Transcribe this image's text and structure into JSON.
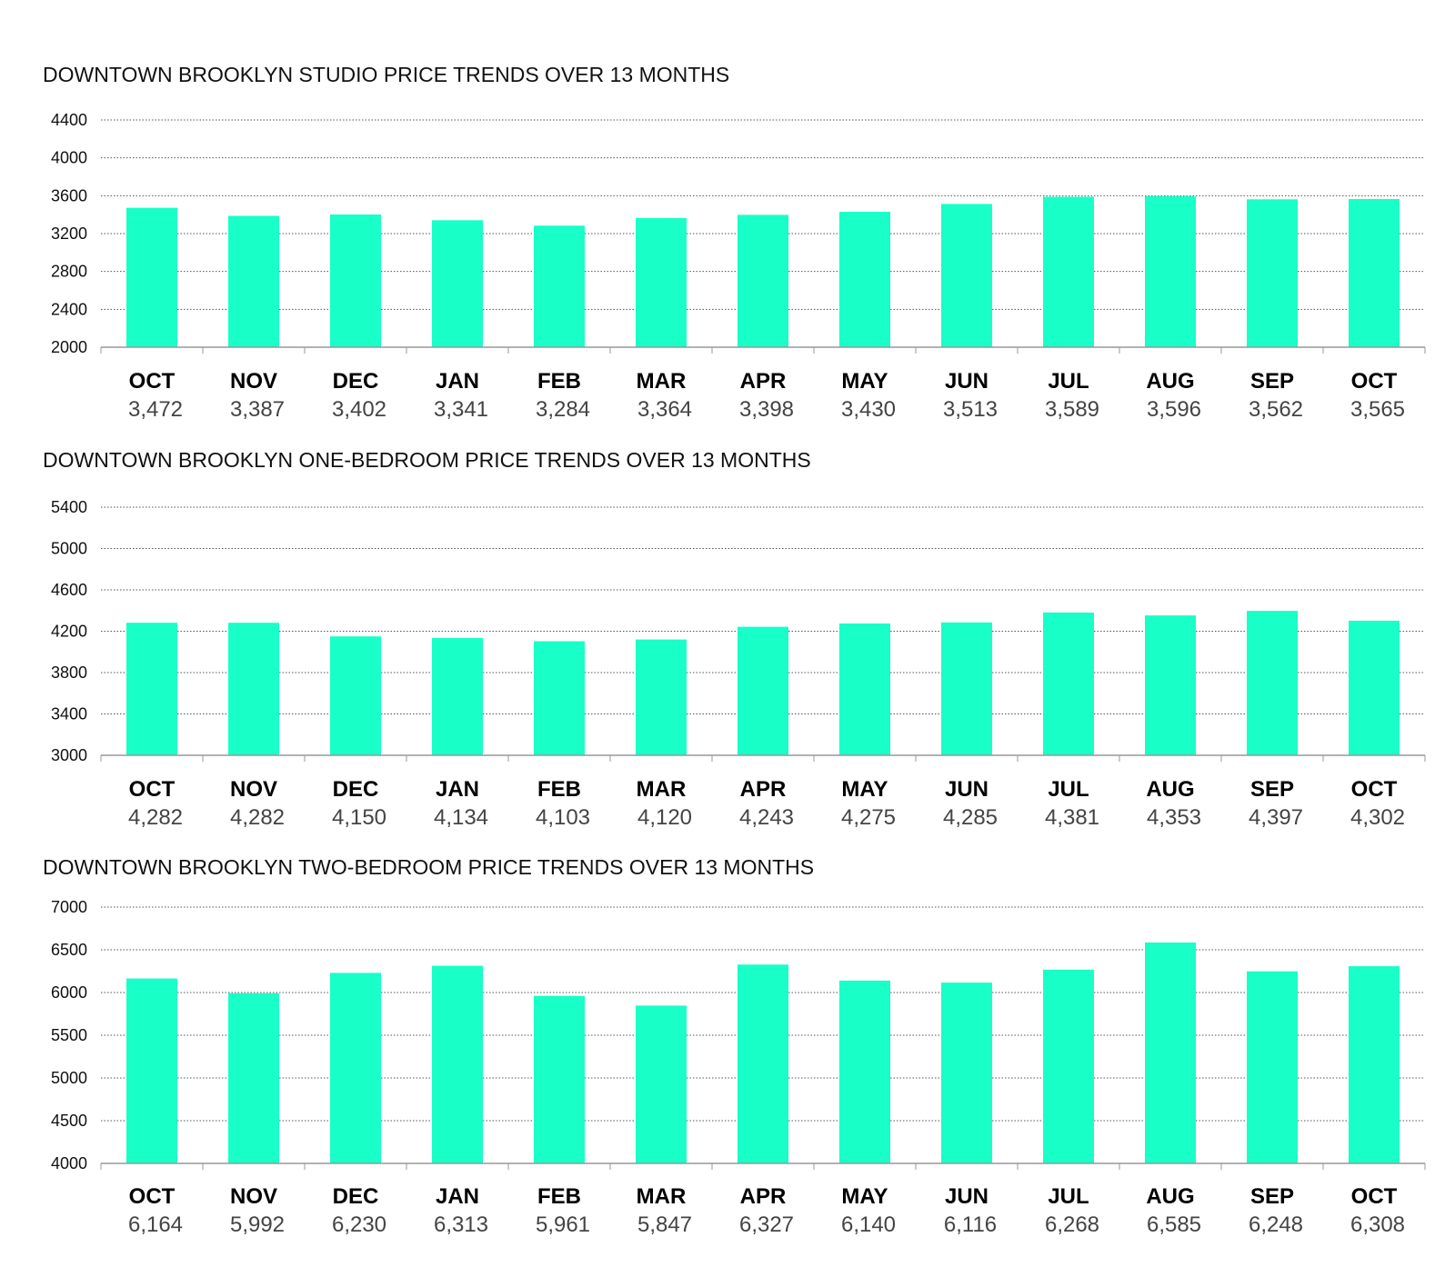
{
  "colors": {
    "bar": "#19FFC8",
    "grid": "#555555",
    "axis": "#999999"
  },
  "chart_data": [
    {
      "type": "bar",
      "title": "DOWNTOWN BROOKLYN STUDIO PRICE TRENDS OVER 13 MONTHS",
      "categories": [
        "OCT",
        "NOV",
        "DEC",
        "JAN",
        "FEB",
        "MAR",
        "APR",
        "MAY",
        "JUN",
        "JUL",
        "AUG",
        "SEP",
        "OCT"
      ],
      "values": [
        3472,
        3387,
        3402,
        3341,
        3284,
        3364,
        3398,
        3430,
        3513,
        3589,
        3596,
        3562,
        3565
      ],
      "value_labels": [
        "3,472",
        "3,387",
        "3,402",
        "3,341",
        "3,284",
        "3,364",
        "3,398",
        "3,430",
        "3,513",
        "3,589",
        "3,596",
        "3,562",
        "3,565"
      ],
      "ylim": [
        2000,
        4400
      ],
      "yticks": [
        2000,
        2400,
        2800,
        3200,
        3600,
        4000,
        4400
      ],
      "grid": true,
      "xlabel": "",
      "ylabel": ""
    },
    {
      "type": "bar",
      "title": "DOWNTOWN BROOKLYN ONE-BEDROOM PRICE TRENDS OVER 13 MONTHS",
      "categories": [
        "OCT",
        "NOV",
        "DEC",
        "JAN",
        "FEB",
        "MAR",
        "APR",
        "MAY",
        "JUN",
        "JUL",
        "AUG",
        "SEP",
        "OCT"
      ],
      "values": [
        4282,
        4282,
        4150,
        4134,
        4103,
        4120,
        4243,
        4275,
        4285,
        4381,
        4353,
        4397,
        4302
      ],
      "value_labels": [
        "4,282",
        "4,282",
        "4,150",
        "4,134",
        "4,103",
        "4,120",
        "4,243",
        "4,275",
        "4,285",
        "4,381",
        "4,353",
        "4,397",
        "4,302"
      ],
      "ylim": [
        3000,
        5400
      ],
      "yticks": [
        3000,
        3400,
        3800,
        4200,
        4600,
        5000,
        5400
      ],
      "grid": true,
      "xlabel": "",
      "ylabel": ""
    },
    {
      "type": "bar",
      "title": "DOWNTOWN BROOKLYN TWO-BEDROOM PRICE TRENDS OVER 13 MONTHS",
      "categories": [
        "OCT",
        "NOV",
        "DEC",
        "JAN",
        "FEB",
        "MAR",
        "APR",
        "MAY",
        "JUN",
        "JUL",
        "AUG",
        "SEP",
        "OCT"
      ],
      "values": [
        6164,
        5992,
        6230,
        6313,
        5961,
        5847,
        6327,
        6140,
        6116,
        6268,
        6585,
        6248,
        6308
      ],
      "value_labels": [
        "6,164",
        "5,992",
        "6,230",
        "6,313",
        "5,961",
        "5,847",
        "6,327",
        "6,140",
        "6,116",
        "6,268",
        "6,585",
        "6,248",
        "6,308"
      ],
      "ylim": [
        4000,
        7000
      ],
      "yticks": [
        4000,
        4500,
        5000,
        5500,
        6000,
        6500,
        7000
      ],
      "grid": true,
      "xlabel": "",
      "ylabel": ""
    }
  ]
}
